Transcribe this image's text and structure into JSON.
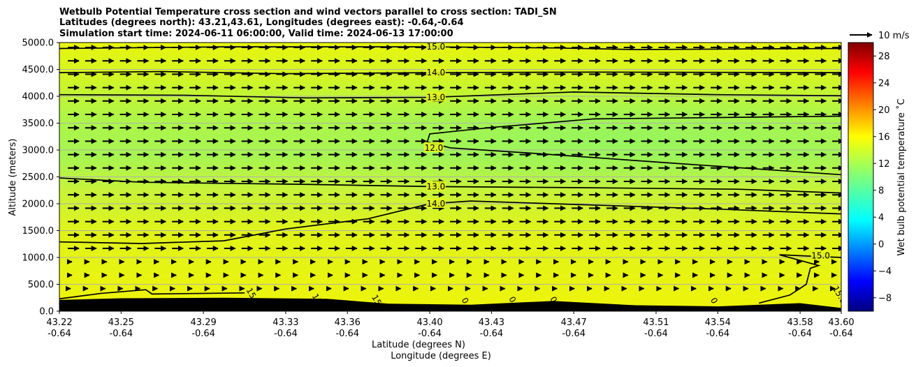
{
  "chart_data": {
    "type": "heatmap",
    "title_lines": [
      "Wetbulb Potential Temperature cross section and wind vectors parallel to cross section: TADI_SN",
      "Latitudes (degrees north): 43.21,43.61, Longitudes (degrees east): -0.64,-0.64",
      "Simulation start time: 2024-06-11 06:00:00, Valid time: 2024-06-13 17:00:00"
    ],
    "ylabel": "Altitude (meters)",
    "xlabel_1": "Latitude (degrees N)",
    "xlabel_2": "Longitude (degrees E)",
    "ylim": [
      0,
      5000
    ],
    "yticks": [
      "0.0",
      "500.0",
      "1000.0",
      "1500.0",
      "2000.0",
      "2500.0",
      "3000.0",
      "3500.0",
      "4000.0",
      "4500.0",
      "5000.0"
    ],
    "yticks_values": [
      0,
      500,
      1000,
      1500,
      2000,
      2500,
      3000,
      3500,
      4000,
      4500,
      5000
    ],
    "xlim": [
      43.22,
      43.6
    ],
    "xticks_lat": [
      "43.22",
      "43.25",
      "43.29",
      "43.33",
      "43.36",
      "43.40",
      "43.43",
      "43.47",
      "43.51",
      "43.54",
      "43.58",
      "43.60"
    ],
    "xticks_lat_values": [
      43.22,
      43.25,
      43.29,
      43.33,
      43.36,
      43.4,
      43.43,
      43.47,
      43.51,
      43.54,
      43.58,
      43.6
    ],
    "xticks_lon": [
      "-0.64",
      "-0.64",
      "-0.64",
      "-0.64",
      "-0.64",
      "-0.64",
      "-0.64",
      "-0.64",
      "-0.64",
      "-0.64",
      "-0.64",
      "-0.64"
    ],
    "grid": "horizontal",
    "colorbar": {
      "label": "Wet bulb potential temperature ˚C",
      "range": [
        -10,
        30
      ],
      "ticks": [
        "−8",
        "−4",
        "0",
        "4",
        "8",
        "12",
        "16",
        "20",
        "24",
        "28"
      ],
      "ticks_values": [
        -8,
        -4,
        0,
        4,
        8,
        12,
        16,
        20,
        24,
        28
      ]
    },
    "quiver_key": "10 m/s",
    "contours": [
      {
        "level": 15,
        "label": "15.0",
        "points": [
          [
            43.22,
            4890
          ],
          [
            43.3,
            4920
          ],
          [
            43.4,
            4920
          ],
          [
            43.46,
            4900
          ],
          [
            43.5,
            4870
          ],
          [
            43.6,
            4890
          ]
        ]
      },
      {
        "level": 14,
        "label": "14.0",
        "points": [
          [
            43.22,
            4440
          ],
          [
            43.27,
            4460
          ],
          [
            43.33,
            4420
          ],
          [
            43.4,
            4440
          ],
          [
            43.48,
            4450
          ],
          [
            43.6,
            4440
          ]
        ]
      },
      {
        "level": 13,
        "label": "13.0",
        "points": [
          [
            43.22,
            4030
          ],
          [
            43.28,
            4020
          ],
          [
            43.34,
            3970
          ],
          [
            43.4,
            3980
          ],
          [
            43.47,
            4080
          ],
          [
            43.54,
            4030
          ],
          [
            43.6,
            4010
          ]
        ]
      },
      {
        "level": 12,
        "label": "12.0",
        "points": [
          [
            43.6,
            3630
          ],
          [
            43.53,
            3600
          ],
          [
            43.48,
            3580
          ],
          [
            43.43,
            3420
          ],
          [
            43.4,
            3300
          ],
          [
            43.3988,
            3150
          ],
          [
            43.41,
            3040
          ],
          [
            43.45,
            2940
          ],
          [
            43.52,
            2750
          ],
          [
            43.6,
            2540
          ]
        ]
      },
      {
        "level": 13,
        "label": "13.0",
        "points": [
          [
            43.22,
            2480
          ],
          [
            43.26,
            2400
          ],
          [
            43.34,
            2360
          ],
          [
            43.4,
            2320
          ],
          [
            43.47,
            2300
          ],
          [
            43.55,
            2270
          ],
          [
            43.6,
            2200
          ]
        ]
      },
      {
        "level": 14,
        "label": "14.0",
        "points": [
          [
            43.22,
            1290
          ],
          [
            43.26,
            1260
          ],
          [
            43.3,
            1310
          ],
          [
            43.33,
            1530
          ],
          [
            43.37,
            1720
          ],
          [
            43.4,
            2000
          ],
          [
            43.42,
            2050
          ],
          [
            43.46,
            2000
          ],
          [
            43.54,
            1900
          ],
          [
            43.6,
            1810
          ]
        ]
      },
      {
        "level": 15,
        "label": "15.0",
        "points": [
          [
            43.6,
            1000
          ],
          [
            43.57,
            1050
          ],
          [
            43.589,
            850
          ],
          [
            43.585,
            800
          ],
          [
            43.583,
            500
          ],
          [
            43.575,
            300
          ],
          [
            43.56,
            150
          ]
        ]
      },
      {
        "level": 15,
        "label": "15",
        "points": [
          [
            43.22,
            230
          ],
          [
            43.24,
            330
          ],
          [
            43.262,
            400
          ],
          [
            43.265,
            320
          ],
          [
            43.31,
            340
          ]
        ]
      }
    ],
    "surface_labels": [
      {
        "label": "15",
        "x": 43.312,
        "y": 310
      },
      {
        "label": "15",
        "x": 43.344,
        "y": 200
      },
      {
        "label": "15",
        "x": 43.373,
        "y": 180
      },
      {
        "label": "0",
        "x": 43.416,
        "y": 170
      },
      {
        "label": "0",
        "x": 43.439,
        "y": 190
      },
      {
        "label": "0",
        "x": 43.459,
        "y": 190
      },
      {
        "label": "0",
        "x": 43.537,
        "y": 170
      },
      {
        "label": "15.0",
        "x": 43.598,
        "y": 280
      }
    ],
    "terrain": [
      [
        43.22,
        210
      ],
      [
        43.25,
        240
      ],
      [
        43.3,
        250
      ],
      [
        43.35,
        230
      ],
      [
        43.38,
        140
      ],
      [
        43.42,
        120
      ],
      [
        43.46,
        190
      ],
      [
        43.5,
        110
      ],
      [
        43.54,
        90
      ],
      [
        43.58,
        150
      ],
      [
        43.6,
        60
      ]
    ]
  }
}
